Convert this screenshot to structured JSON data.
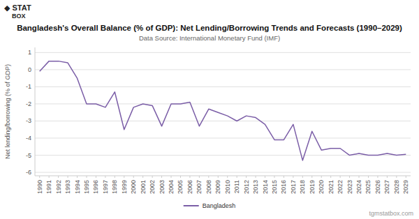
{
  "chart_data": {
    "type": "line",
    "title": "Bangladesh's Overall Balance (% of GDP): Net Lending/Borrowing Trends and Forecasts (1990–2029)",
    "subtitle": "Data Source: International Monetary Fund (IMF)",
    "y_label": "Net lending/borrowing (% of GDP)",
    "annotations": [
      {
        "text": "tgmstatbox.com"
      },
      {
        "text": "◆ STAT"
      },
      {
        "text": "BOX"
      }
    ],
    "x": [
      1990,
      1991,
      1992,
      1993,
      1994,
      1995,
      1996,
      1997,
      1998,
      1999,
      2000,
      2001,
      2002,
      2003,
      2004,
      2005,
      2006,
      2007,
      2008,
      2009,
      2010,
      2011,
      2012,
      2013,
      2014,
      2015,
      2016,
      2017,
      2018,
      2019,
      2020,
      2021,
      2022,
      2023,
      2024,
      2025,
      2026,
      2027,
      2028,
      2029
    ],
    "series": [
      {
        "name": "Bangladesh",
        "color": "#7b5ea7",
        "values": [
          -0.1,
          0.5,
          0.5,
          0.4,
          -0.5,
          -2.0,
          -2.0,
          -2.2,
          -1.3,
          -3.5,
          -2.2,
          -2.0,
          -2.1,
          -3.3,
          -2.0,
          -2.0,
          -1.9,
          -3.3,
          -2.3,
          -2.5,
          -2.7,
          -3.0,
          -2.7,
          -2.8,
          -3.2,
          -4.1,
          -4.1,
          -3.2,
          -5.3,
          -3.6,
          -4.7,
          -4.6,
          -4.6,
          -5.0,
          -4.9,
          -5.0,
          -5.0,
          -4.9,
          -5.0,
          -4.95
        ]
      }
    ],
    "xlim": [
      1989.5,
      2029.5
    ],
    "xticks": [
      1990,
      1991,
      1992,
      1993,
      1994,
      1995,
      1996,
      1997,
      1998,
      1999,
      2000,
      2001,
      2002,
      2003,
      2004,
      2005,
      2006,
      2007,
      2008,
      2009,
      2010,
      2011,
      2012,
      2013,
      2014,
      2015,
      2016,
      2017,
      2018,
      2019,
      2020,
      2021,
      2022,
      2023,
      2024,
      2025,
      2026,
      2027,
      2028,
      2029
    ],
    "ylim": [
      -6.2,
      1.3
    ],
    "yticks": [
      -6,
      -5,
      -4,
      -3,
      -2,
      -1,
      0,
      1
    ],
    "grid": "y",
    "legend": "bottom"
  }
}
